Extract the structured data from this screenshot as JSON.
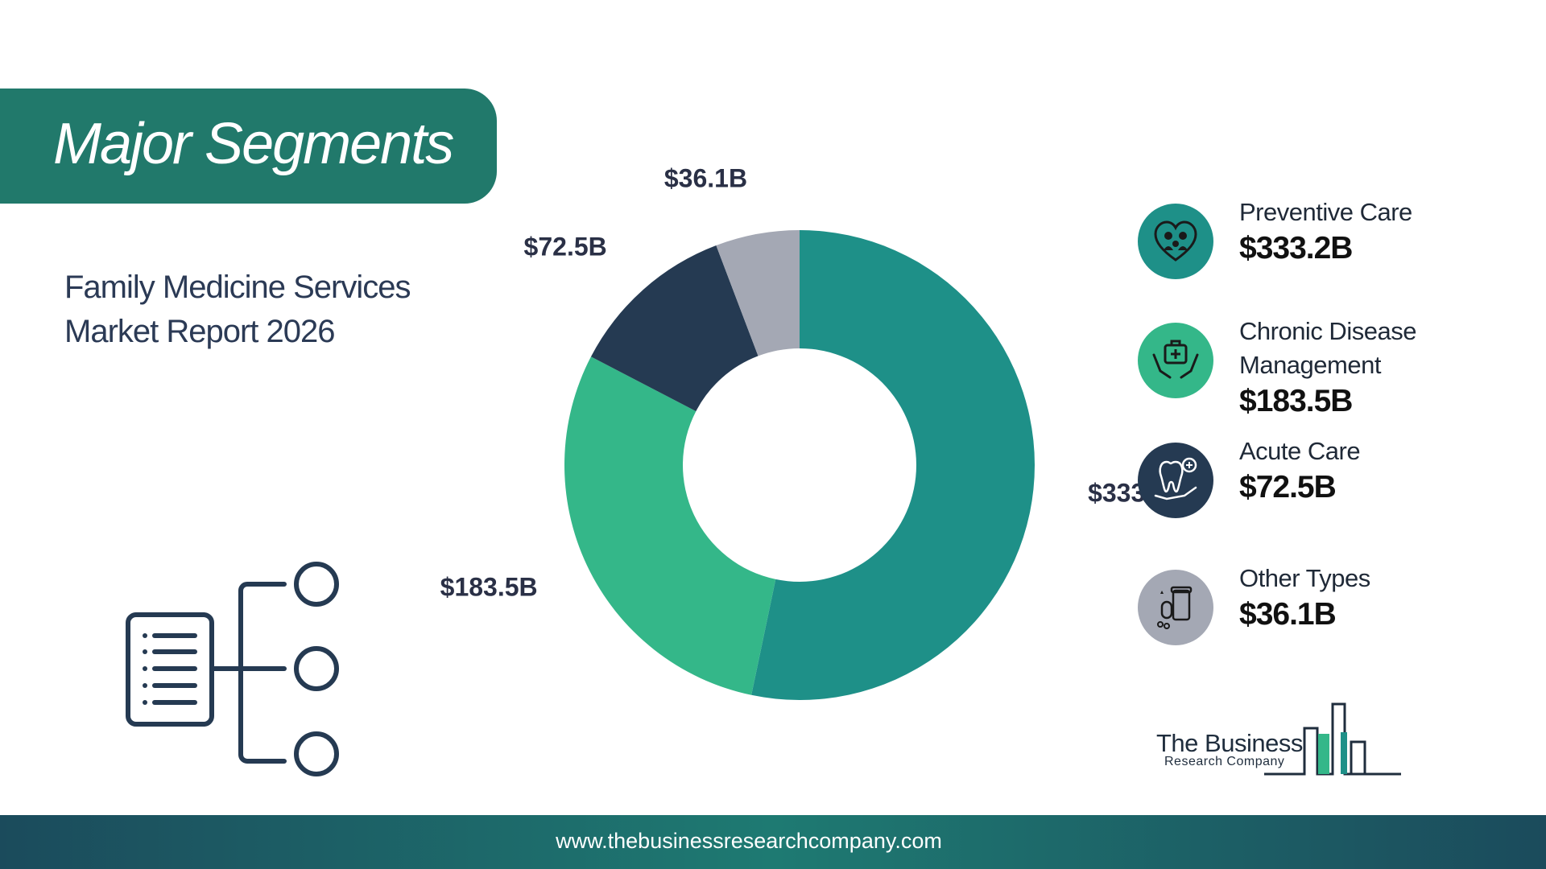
{
  "header": {
    "title": "Major Segments"
  },
  "subtitle": {
    "line1": "Family Medicine Services",
    "line2": "Market Report 2026"
  },
  "chart_data": {
    "type": "pie",
    "donut": true,
    "categories": [
      "Preventive Care",
      "Chronic Disease Management",
      "Acute Care",
      "Other Types"
    ],
    "values": [
      333.2,
      183.5,
      72.5,
      36.1
    ],
    "data_labels": [
      "$333.2B",
      "$183.5B",
      "$72.5B",
      "$36.1B"
    ],
    "colors": [
      "#1e9088",
      "#34b789",
      "#253a52",
      "#a4a8b4"
    ],
    "start_angle": "top",
    "direction": "clockwise"
  },
  "legend": [
    {
      "name_lines": [
        "Preventive Care"
      ],
      "value": "$333.2B",
      "color": "#1e9088",
      "icon": "heart-family-icon"
    },
    {
      "name_lines": [
        "Chronic Disease",
        "Management"
      ],
      "value": "$183.5B",
      "color": "#34b789",
      "icon": "medical-kit-hands-icon"
    },
    {
      "name_lines": [
        "Acute Care"
      ],
      "value": "$72.5B",
      "color": "#253a52",
      "icon": "tooth-hand-icon"
    },
    {
      "name_lines": [
        "Other Types"
      ],
      "value": "$36.1B",
      "color": "#a4a8b4",
      "icon": "pill-bottle-icon"
    }
  ],
  "brand": {
    "name": "The Business",
    "sub": "Research Company"
  },
  "footer": {
    "url": "www.thebusinessresearchcompany.com"
  }
}
